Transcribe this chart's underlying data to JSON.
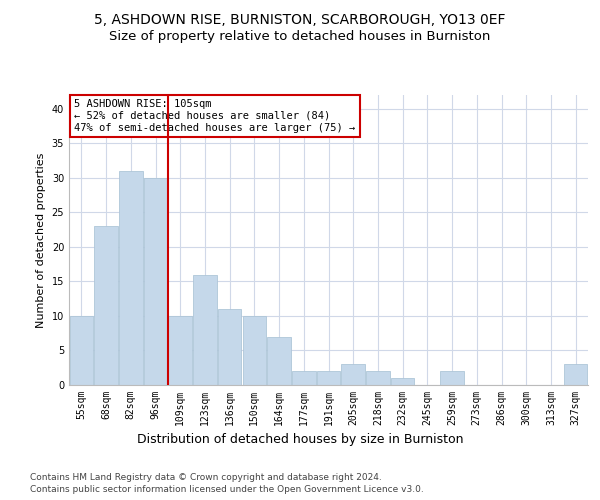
{
  "title1": "5, ASHDOWN RISE, BURNISTON, SCARBOROUGH, YO13 0EF",
  "title2": "Size of property relative to detached houses in Burniston",
  "xlabel": "Distribution of detached houses by size in Burniston",
  "ylabel": "Number of detached properties",
  "categories": [
    "55sqm",
    "68sqm",
    "82sqm",
    "96sqm",
    "109sqm",
    "123sqm",
    "136sqm",
    "150sqm",
    "164sqm",
    "177sqm",
    "191sqm",
    "205sqm",
    "218sqm",
    "232sqm",
    "245sqm",
    "259sqm",
    "273sqm",
    "286sqm",
    "300sqm",
    "313sqm",
    "327sqm"
  ],
  "values": [
    10,
    23,
    31,
    30,
    10,
    16,
    11,
    10,
    7,
    2,
    2,
    3,
    2,
    1,
    0,
    2,
    0,
    0,
    0,
    0,
    3
  ],
  "bar_color": "#c5d8ea",
  "bar_edge_color": "#aec6d8",
  "vline_x": 3.5,
  "vline_color": "#cc0000",
  "annotation_text": "5 ASHDOWN RISE: 105sqm\n← 52% of detached houses are smaller (84)\n47% of semi-detached houses are larger (75) →",
  "annotation_box_color": "#ffffff",
  "annotation_box_edge": "#cc0000",
  "ylim": [
    0,
    42
  ],
  "yticks": [
    0,
    5,
    10,
    15,
    20,
    25,
    30,
    35,
    40
  ],
  "grid_color": "#d0d8e8",
  "footer1": "Contains HM Land Registry data © Crown copyright and database right 2024.",
  "footer2": "Contains public sector information licensed under the Open Government Licence v3.0.",
  "title1_fontsize": 10,
  "title2_fontsize": 9.5,
  "xlabel_fontsize": 9,
  "ylabel_fontsize": 8,
  "tick_fontsize": 7,
  "footer_fontsize": 6.5,
  "ann_fontsize": 7.5
}
